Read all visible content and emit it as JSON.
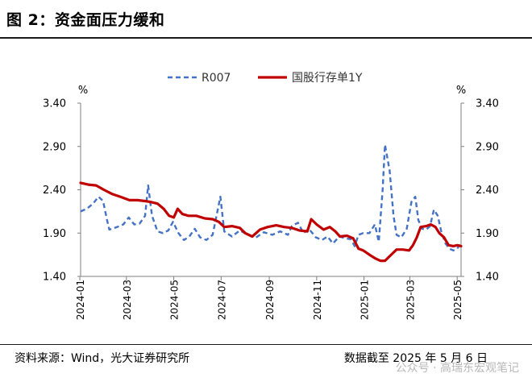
{
  "header": {
    "title": "图 2：资金面压力缓和"
  },
  "footer": {
    "source": "资料来源：Wind，光大证券研究所",
    "cutoff": "数据截至 2025 年 5 月 6 日",
    "watermark": "公众号 · 高瑞东宏观笔记"
  },
  "chart_data": {
    "type": "line",
    "title": "",
    "left_unit": "%",
    "right_unit": "%",
    "ylim": [
      1.4,
      3.4
    ],
    "yticks": [
      "3.40",
      "2.90",
      "2.40",
      "1.90",
      "1.40"
    ],
    "xlim": [
      "2024-01-02",
      "2025-05-06"
    ],
    "xticks": [
      "2024-01",
      "2024-03",
      "2024-05",
      "2024-07",
      "2024-09",
      "2024-11",
      "2025-01",
      "2025-03",
      "2025-05"
    ],
    "legend_position": "top-center",
    "grid": false,
    "series": [
      {
        "name": "R007",
        "color": "#4472c4",
        "style": "dashed",
        "points": [
          [
            "2024-01-02",
            2.15
          ],
          [
            "2024-01-10",
            2.18
          ],
          [
            "2024-01-18",
            2.24
          ],
          [
            "2024-01-25",
            2.32
          ],
          [
            "2024-01-31",
            2.27
          ],
          [
            "2024-02-05",
            2.05
          ],
          [
            "2024-02-08",
            1.94
          ],
          [
            "2024-02-18",
            1.97
          ],
          [
            "2024-02-26",
            2.0
          ],
          [
            "2024-03-04",
            2.08
          ],
          [
            "2024-03-11",
            2.0
          ],
          [
            "2024-03-18",
            2.01
          ],
          [
            "2024-03-25",
            2.1
          ],
          [
            "2024-03-29",
            2.45
          ],
          [
            "2024-04-03",
            2.1
          ],
          [
            "2024-04-10",
            1.92
          ],
          [
            "2024-04-17",
            1.9
          ],
          [
            "2024-04-24",
            1.93
          ],
          [
            "2024-04-30",
            2.03
          ],
          [
            "2024-05-07",
            1.9
          ],
          [
            "2024-05-14",
            1.82
          ],
          [
            "2024-05-21",
            1.86
          ],
          [
            "2024-05-28",
            1.95
          ],
          [
            "2024-06-04",
            1.85
          ],
          [
            "2024-06-12",
            1.82
          ],
          [
            "2024-06-20",
            1.88
          ],
          [
            "2024-06-30",
            2.32
          ],
          [
            "2024-07-05",
            1.92
          ],
          [
            "2024-07-15",
            1.86
          ],
          [
            "2024-07-25",
            1.93
          ],
          [
            "2024-08-05",
            1.88
          ],
          [
            "2024-08-15",
            1.85
          ],
          [
            "2024-08-25",
            1.91
          ],
          [
            "2024-09-05",
            1.88
          ],
          [
            "2024-09-15",
            1.92
          ],
          [
            "2024-09-25",
            1.88
          ],
          [
            "2024-09-30",
            1.98
          ],
          [
            "2024-10-08",
            2.02
          ],
          [
            "2024-10-15",
            1.9
          ],
          [
            "2024-10-22",
            1.95
          ],
          [
            "2024-10-31",
            1.85
          ],
          [
            "2024-11-08",
            1.82
          ],
          [
            "2024-11-15",
            1.86
          ],
          [
            "2024-11-22",
            1.78
          ],
          [
            "2024-11-30",
            1.86
          ],
          [
            "2024-12-08",
            1.84
          ],
          [
            "2024-12-15",
            1.83
          ],
          [
            "2024-12-20",
            1.75
          ],
          [
            "2024-12-25",
            1.88
          ],
          [
            "2024-12-31",
            1.9
          ],
          [
            "2025-01-08",
            1.9
          ],
          [
            "2025-01-15",
            2.0
          ],
          [
            "2025-01-20",
            1.8
          ],
          [
            "2025-01-25",
            2.4
          ],
          [
            "2025-01-28",
            2.92
          ],
          [
            "2025-02-03",
            2.62
          ],
          [
            "2025-02-08",
            2.1
          ],
          [
            "2025-02-12",
            1.88
          ],
          [
            "2025-02-18",
            1.85
          ],
          [
            "2025-02-25",
            1.95
          ],
          [
            "2025-03-03",
            2.26
          ],
          [
            "2025-03-08",
            2.32
          ],
          [
            "2025-03-12",
            2.05
          ],
          [
            "2025-03-17",
            1.95
          ],
          [
            "2025-03-22",
            1.94
          ],
          [
            "2025-03-27",
            1.98
          ],
          [
            "2025-04-01",
            2.17
          ],
          [
            "2025-04-06",
            2.1
          ],
          [
            "2025-04-11",
            1.9
          ],
          [
            "2025-04-16",
            1.78
          ],
          [
            "2025-04-21",
            1.72
          ],
          [
            "2025-04-26",
            1.7
          ],
          [
            "2025-05-01",
            1.72
          ],
          [
            "2025-05-06",
            1.79
          ]
        ]
      },
      {
        "name": "国股行存单1Y",
        "color": "#c00000",
        "style": "solid",
        "points": [
          [
            "2024-01-02",
            2.48
          ],
          [
            "2024-01-12",
            2.46
          ],
          [
            "2024-01-22",
            2.45
          ],
          [
            "2024-02-01",
            2.4
          ],
          [
            "2024-02-12",
            2.35
          ],
          [
            "2024-02-22",
            2.32
          ],
          [
            "2024-03-05",
            2.28
          ],
          [
            "2024-03-15",
            2.28
          ],
          [
            "2024-03-25",
            2.27
          ],
          [
            "2024-04-01",
            2.26
          ],
          [
            "2024-04-10",
            2.24
          ],
          [
            "2024-04-18",
            2.18
          ],
          [
            "2024-04-25",
            2.1
          ],
          [
            "2024-05-01",
            2.08
          ],
          [
            "2024-05-06",
            2.18
          ],
          [
            "2024-05-12",
            2.12
          ],
          [
            "2024-05-20",
            2.1
          ],
          [
            "2024-05-30",
            2.1
          ],
          [
            "2024-06-10",
            2.07
          ],
          [
            "2024-06-20",
            2.06
          ],
          [
            "2024-06-28",
            2.03
          ],
          [
            "2024-07-05",
            1.97
          ],
          [
            "2024-07-15",
            1.98
          ],
          [
            "2024-07-25",
            1.96
          ],
          [
            "2024-08-01",
            1.9
          ],
          [
            "2024-08-10",
            1.86
          ],
          [
            "2024-08-20",
            1.94
          ],
          [
            "2024-08-30",
            1.97
          ],
          [
            "2024-09-10",
            1.99
          ],
          [
            "2024-09-20",
            1.97
          ],
          [
            "2024-09-30",
            1.96
          ],
          [
            "2024-10-10",
            1.93
          ],
          [
            "2024-10-20",
            1.92
          ],
          [
            "2024-10-25",
            2.06
          ],
          [
            "2024-11-01",
            2.0
          ],
          [
            "2024-11-10",
            1.94
          ],
          [
            "2024-11-18",
            1.97
          ],
          [
            "2024-11-25",
            1.92
          ],
          [
            "2024-12-01",
            1.86
          ],
          [
            "2024-12-10",
            1.87
          ],
          [
            "2024-12-18",
            1.84
          ],
          [
            "2024-12-25",
            1.72
          ],
          [
            "2024-12-31",
            1.7
          ],
          [
            "2025-01-08",
            1.65
          ],
          [
            "2025-01-15",
            1.61
          ],
          [
            "2025-01-22",
            1.58
          ],
          [
            "2025-01-28",
            1.58
          ],
          [
            "2025-02-05",
            1.65
          ],
          [
            "2025-02-12",
            1.71
          ],
          [
            "2025-02-20",
            1.71
          ],
          [
            "2025-02-28",
            1.7
          ],
          [
            "2025-03-05",
            1.76
          ],
          [
            "2025-03-10",
            1.85
          ],
          [
            "2025-03-15",
            1.97
          ],
          [
            "2025-03-22",
            1.98
          ],
          [
            "2025-03-28",
            2.0
          ],
          [
            "2025-04-03",
            1.97
          ],
          [
            "2025-04-08",
            1.9
          ],
          [
            "2025-04-14",
            1.85
          ],
          [
            "2025-04-20",
            1.76
          ],
          [
            "2025-04-26",
            1.75
          ],
          [
            "2025-05-01",
            1.76
          ],
          [
            "2025-05-06",
            1.75
          ]
        ]
      }
    ]
  }
}
